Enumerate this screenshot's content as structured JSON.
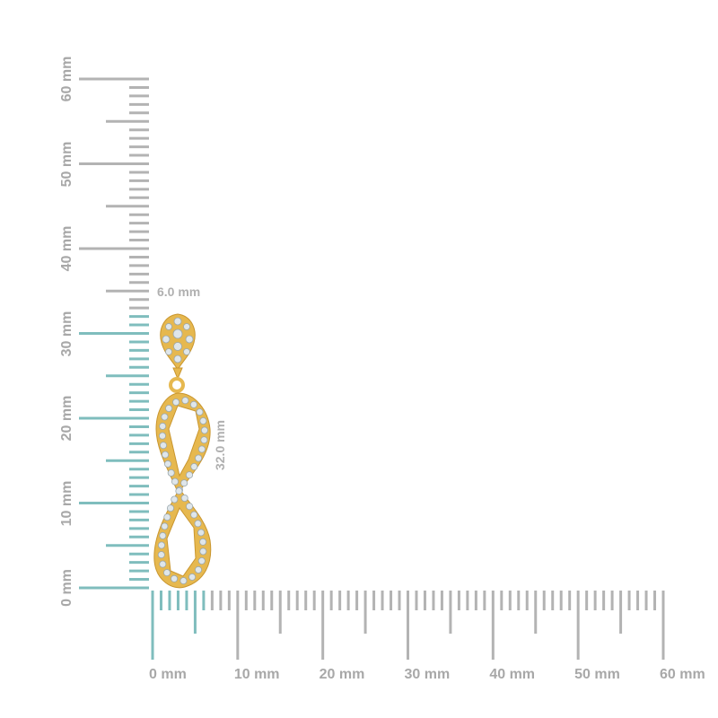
{
  "colors": {
    "tick": "#b3b3b3",
    "highlight": "#7fbdbd",
    "gold": "#e6b84f",
    "gold_dark": "#c9962f",
    "diamond": "#dfe6ea",
    "label": "#a8a8a8"
  },
  "vertical_ruler": {
    "unit": "mm",
    "min": 0,
    "max": 60,
    "highlight_to": 32,
    "labels": [
      "0 mm",
      "10 mm",
      "20 mm",
      "30 mm",
      "40 mm",
      "50 mm",
      "60 mm"
    ]
  },
  "horizontal_ruler": {
    "unit": "mm",
    "min": 0,
    "max": 60,
    "highlight_to": 6,
    "labels": [
      "0 mm",
      "10 mm",
      "20 mm",
      "30 mm",
      "40 mm",
      "50 mm",
      "60 mm"
    ]
  },
  "dimensions": {
    "width": "6.0 mm",
    "height": "32.0 mm"
  },
  "product": {
    "type": "earring",
    "metal": "yellow gold",
    "stones": "diamonds",
    "shape": "teardrop top with infinity drop"
  }
}
